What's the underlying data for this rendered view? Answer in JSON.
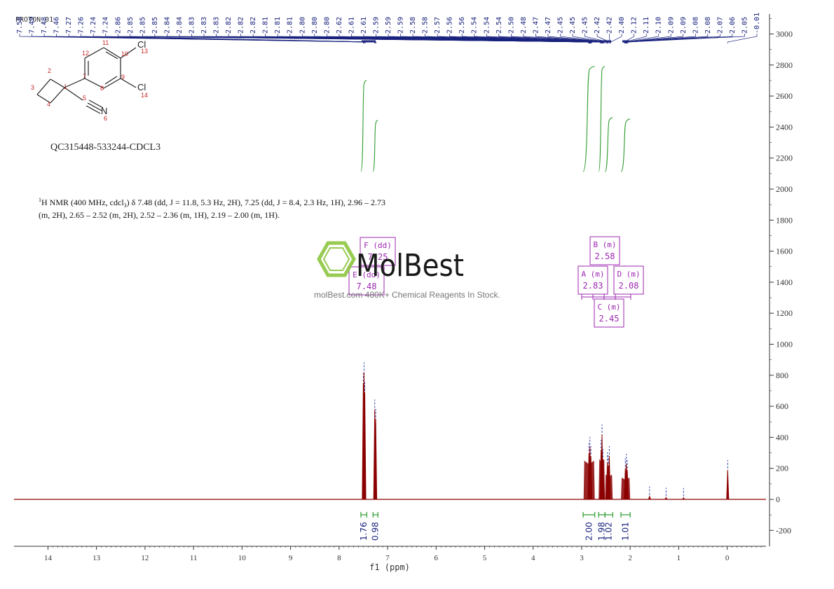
{
  "spectrum_title": "PROTON_01",
  "sample_id": "QC315448-533244-CDCL3",
  "nmr_text_line1": "H NMR (400 MHz, cdcl",
  "nmr_text_sup": "1",
  "nmr_text_sub": "3",
  "nmr_text_line1_rest": ") δ 7.48 (dd, J = 11.8, 5.3 Hz, 2H), 7.25 (dd, J = 8.4, 2.3 Hz, 1H), 2.96 – 2.73",
  "nmr_text_line2": "(m, 2H), 2.65 – 2.52 (m, 2H), 2.52 – 2.36 (m, 1H), 2.19 – 2.00 (m, 1H).",
  "watermark": {
    "brand": "MolBest",
    "tagline": "molBest.com 480K+ Chemical Reagents In Stock.",
    "logo_color": "#8cc63f"
  },
  "molecule": {
    "atom_labels": [
      "2",
      "3",
      "1",
      "4",
      "5",
      "6",
      "7",
      "8",
      "9",
      "10",
      "11",
      "12",
      "13",
      "14"
    ],
    "cl_label": "Cl",
    "n_label": "N"
  },
  "colors": {
    "spectrum": "#8b0000",
    "integral": "#2e9b2e",
    "peak_label": "#1a237e",
    "multiplet_box": "#9c27b0",
    "axis": "#333333"
  },
  "multiplets": [
    {
      "name": "F (dd)",
      "shift": "7.25"
    },
    {
      "name": "E (dd)",
      "shift": "7.48"
    },
    {
      "name": "B (m)",
      "shift": "2.58"
    },
    {
      "name": "A (m)",
      "shift": "2.83"
    },
    {
      "name": "D (m)",
      "shift": "2.08"
    },
    {
      "name": "C (m)",
      "shift": "2.45"
    }
  ],
  "chart_data": {
    "type": "line",
    "xlabel": "f1 (ppm)",
    "ylabel": "",
    "xlim": [
      14.7,
      -0.8
    ],
    "ylim": [
      -300,
      3100
    ],
    "x_ticks": [
      "14",
      "13",
      "12",
      "11",
      "10",
      "9",
      "8",
      "7",
      "6",
      "5",
      "4",
      "3",
      "2",
      "1",
      "0"
    ],
    "y_ticks": [
      "-200",
      "0",
      "200",
      "400",
      "600",
      "800",
      "1000",
      "1200",
      "1400",
      "1600",
      "1800",
      "2000",
      "2200",
      "2400",
      "2600",
      "2800",
      "3000"
    ],
    "peak_labels": [
      "7.50",
      "7.49",
      "7.48",
      "7.46",
      "7.27",
      "7.26",
      "7.24",
      "7.24",
      "2.86",
      "2.85",
      "2.85",
      "2.85",
      "2.84",
      "2.84",
      "2.83",
      "2.83",
      "2.83",
      "2.82",
      "2.82",
      "2.82",
      "2.81",
      "2.81",
      "2.81",
      "2.80",
      "2.80",
      "2.80",
      "2.62",
      "2.61",
      "2.61",
      "2.59",
      "2.59",
      "2.59",
      "2.58",
      "2.58",
      "2.57",
      "2.56",
      "2.56",
      "2.54",
      "2.54",
      "2.54",
      "2.50",
      "2.48",
      "2.47",
      "2.47",
      "2.45",
      "2.45",
      "2.45",
      "2.42",
      "2.42",
      "2.40",
      "2.12",
      "2.11",
      "2.10",
      "2.09",
      "2.09",
      "2.08",
      "2.08",
      "2.07",
      "2.06",
      "2.05",
      "-0.01"
    ],
    "peaks": [
      {
        "x": 7.5,
        "y": 750
      },
      {
        "x": 7.485,
        "y": 820
      },
      {
        "x": 7.47,
        "y": 690
      },
      {
        "x": 7.265,
        "y": 580
      },
      {
        "x": 7.245,
        "y": 520
      },
      {
        "x": 2.85,
        "y": 300
      },
      {
        "x": 2.83,
        "y": 340
      },
      {
        "x": 2.81,
        "y": 280
      },
      {
        "x": 2.6,
        "y": 320
      },
      {
        "x": 2.58,
        "y": 420
      },
      {
        "x": 2.56,
        "y": 260
      },
      {
        "x": 2.47,
        "y": 240
      },
      {
        "x": 2.45,
        "y": 220
      },
      {
        "x": 2.43,
        "y": 280
      },
      {
        "x": 2.1,
        "y": 200
      },
      {
        "x": 2.08,
        "y": 230
      },
      {
        "x": 2.06,
        "y": 190
      },
      {
        "x": 1.6,
        "y": 20
      },
      {
        "x": 1.26,
        "y": 12
      },
      {
        "x": 0.9,
        "y": 10
      },
      {
        "x": -0.01,
        "y": 190
      }
    ],
    "integrals": [
      {
        "label": "1.76",
        "from": 7.55,
        "to": 7.43
      },
      {
        "label": "0.98",
        "from": 7.3,
        "to": 7.2
      },
      {
        "label": "2.00",
        "from": 2.97,
        "to": 2.73
      },
      {
        "label": "1.98",
        "from": 2.65,
        "to": 2.52
      },
      {
        "label": "1.02",
        "from": 2.52,
        "to": 2.36
      },
      {
        "label": "1.01",
        "from": 2.19,
        "to": 2.0
      }
    ]
  }
}
